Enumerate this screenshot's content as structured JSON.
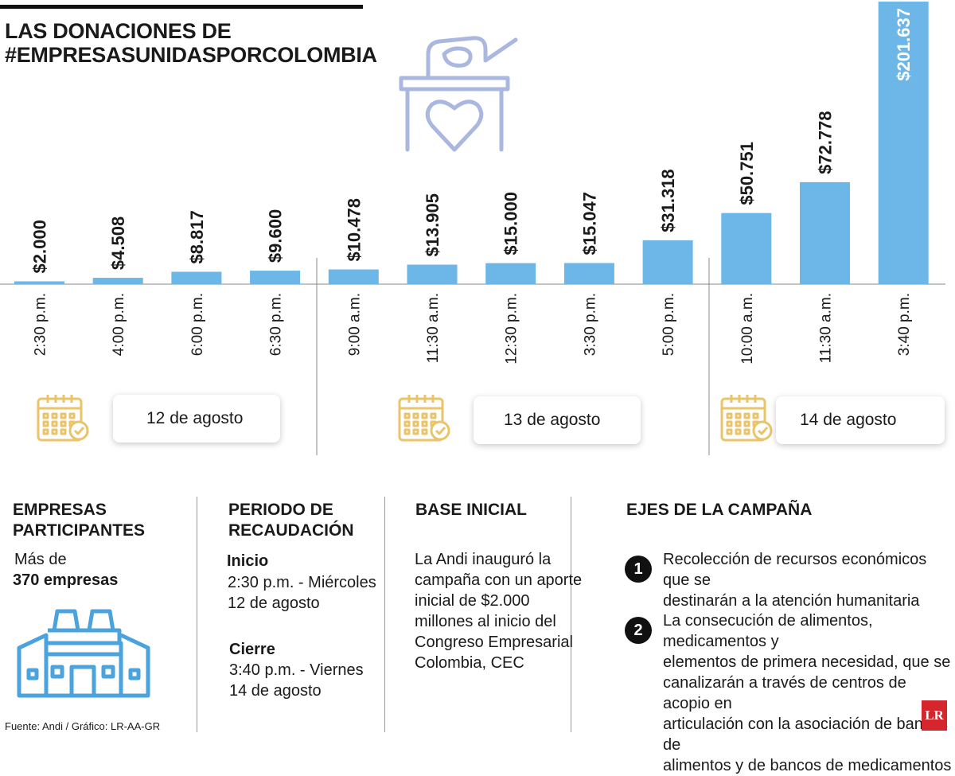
{
  "title_line1": "LAS DONACIONES DE",
  "title_line2": "#EMPRESASUNIDASPORCOLOMBIA",
  "chart_data": {
    "type": "bar",
    "categories": [
      "2:30 p.m.",
      "4:00 p.m.",
      "6:00 p.m.",
      "6:30 p.m.",
      "9:00 a.m.",
      "11:30 a.m.",
      "12:30 p.m.",
      "3:30 p.m.",
      "5:00 p.m.",
      "10:00 a.m.",
      "11:30 a.m.",
      "3:40 p.m."
    ],
    "values": [
      2000,
      4508,
      8817,
      9600,
      10478,
      13905,
      15000,
      15047,
      31318,
      50751,
      72778,
      201637
    ],
    "value_labels": [
      "$2.000",
      "$4.508",
      "$8.817",
      "$9.600",
      "$10.478",
      "$13.905",
      "$15.000",
      "$15.047",
      "$31.318",
      "$50.751",
      "$72.778",
      "$201.637"
    ],
    "groups": [
      {
        "label": "12 de agosto",
        "count": 4
      },
      {
        "label": "13 de agosto",
        "count": 5
      },
      {
        "label": "14 de agosto",
        "count": 3
      }
    ],
    "ylim": [
      0,
      201637
    ],
    "colors": {
      "bar": "#6cb6e8",
      "icon_gold": "#e9c46a",
      "icon_blue_light": "#aab8e0",
      "icon_blue": "#4ba3de"
    }
  },
  "empresas": {
    "title_line1": "EMPRESAS",
    "title_line2": "PARTICIPANTES",
    "prefix": "Más de",
    "count": "370 empresas"
  },
  "periodo": {
    "title_line1": "PERIODO DE",
    "title_line2": "RECAUDACIÓN",
    "start_label": "Inicio",
    "start_line1": "2:30 p.m. - Miércoles",
    "start_line2": "12 de agosto",
    "end_label": "Cierre",
    "end_line1": "3:40 p.m. - Viernes",
    "end_line2": "14 de agosto"
  },
  "base": {
    "title": "BASE INICIAL",
    "lines": [
      "La Andi inauguró la",
      "campaña con un aporte",
      "inicial de $2.000",
      "millones al inicio del",
      "Congreso Empresarial",
      "Colombia, CEC"
    ]
  },
  "ejes": {
    "title": "EJES DE LA CAMPAÑA",
    "items": [
      {
        "num": "1",
        "lines": [
          "Recolección de recursos económicos que se",
          "destinarán a la atención humanitaria"
        ]
      },
      {
        "num": "2",
        "lines": [
          "La consecución de alimentos, medicamentos y",
          "elementos de primera necesidad, que se",
          "canalizarán a través de centros de acopio en",
          "articulación con la asociación de bancos de",
          "alimentos y de bancos de medicamentos"
        ]
      }
    ]
  },
  "source": "Fuente: Andi / Gráfico: LR-AA-GR",
  "logo_text": "LR"
}
